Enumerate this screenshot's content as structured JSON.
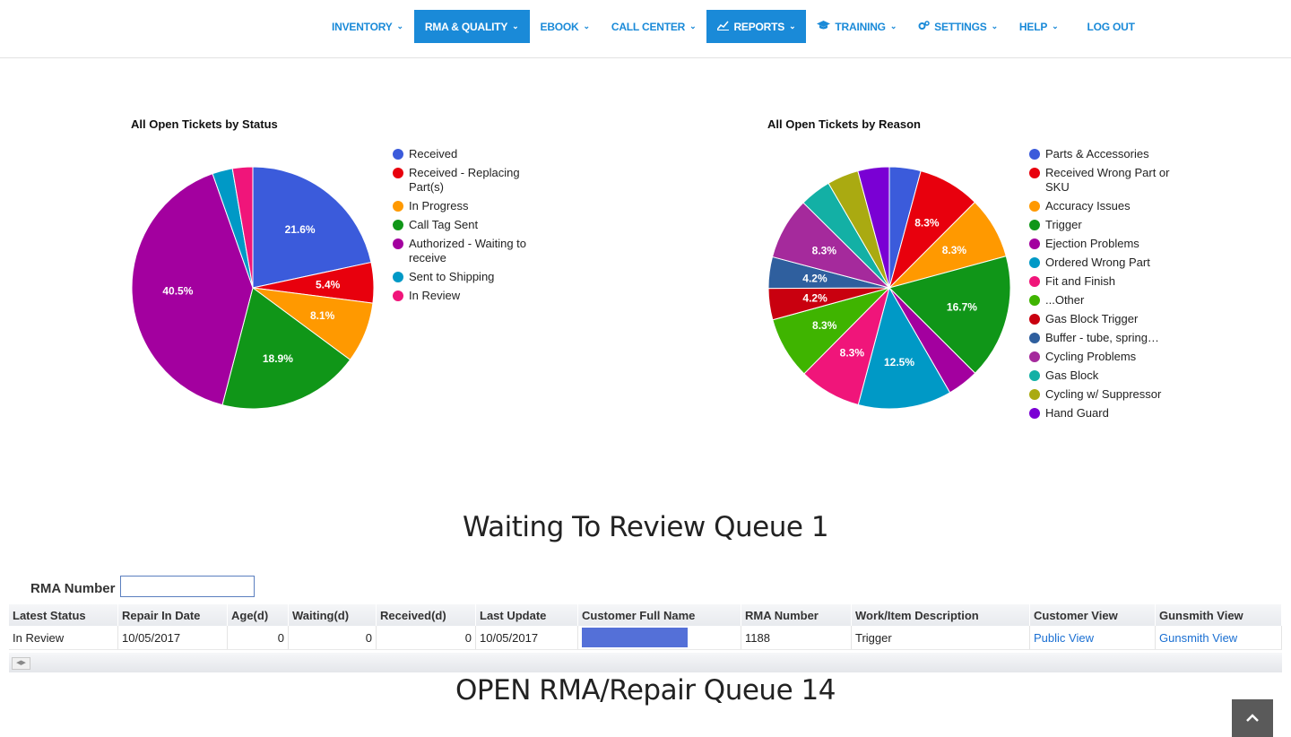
{
  "nav": [
    {
      "label": "INVENTORY",
      "active": false,
      "icon": ""
    },
    {
      "label": "RMA & QUALITY",
      "active": true,
      "icon": ""
    },
    {
      "label": "EBOOK",
      "active": false,
      "icon": ""
    },
    {
      "label": "CALL CENTER",
      "active": false,
      "icon": ""
    },
    {
      "label": "REPORTS",
      "active": true,
      "icon": "line-chart-icon"
    },
    {
      "label": "TRAINING",
      "active": false,
      "icon": "graduation-cap-icon"
    },
    {
      "label": "SETTINGS",
      "active": false,
      "icon": "cogs-icon"
    },
    {
      "label": "HELP",
      "active": false,
      "icon": ""
    },
    {
      "label": "LOG OUT",
      "active": false,
      "icon": "",
      "no_chevron": true
    }
  ],
  "chart_data": [
    {
      "type": "pie",
      "title": "All Open Tickets by Status",
      "legend_position": "right",
      "slices": [
        {
          "label": "Received",
          "value": 21.6,
          "color": "#3b5bdb",
          "display": "21.6%"
        },
        {
          "label": "Received - Replacing Part(s)",
          "value": 5.4,
          "color": "#e8000d",
          "display": "5.4%"
        },
        {
          "label": "In Progress",
          "value": 8.1,
          "color": "#ff9900",
          "display": "8.1%"
        },
        {
          "label": "Call Tag Sent",
          "value": 18.9,
          "color": "#109618",
          "display": "18.9%"
        },
        {
          "label": "Authorized - Waiting to receive",
          "value": 40.5,
          "color": "#a3009f",
          "display": "40.5%"
        },
        {
          "label": "Sent to Shipping",
          "value": 2.7,
          "color": "#0099c6",
          "display": ""
        },
        {
          "label": "In Review",
          "value": 2.7,
          "color": "#f0157a",
          "display": ""
        }
      ]
    },
    {
      "type": "pie",
      "title": "All Open Tickets by Reason",
      "legend_position": "right",
      "slices": [
        {
          "label": "Parts & Accessories",
          "value": 4.2,
          "color": "#3b5bdb",
          "display": ""
        },
        {
          "label": "Received Wrong Part or SKU",
          "value": 8.3,
          "color": "#e8000d",
          "display": "8.3%"
        },
        {
          "label": "Accuracy Issues",
          "value": 8.3,
          "color": "#ff9900",
          "display": "8.3%"
        },
        {
          "label": "Trigger",
          "value": 16.7,
          "color": "#109618",
          "display": "16.7%"
        },
        {
          "label": "Ejection Problems",
          "value": 4.2,
          "color": "#a3009f",
          "display": ""
        },
        {
          "label": "Ordered Wrong Part",
          "value": 12.5,
          "color": "#0099c6",
          "display": "12.5%"
        },
        {
          "label": "Fit and Finish",
          "value": 8.3,
          "color": "#f0157a",
          "display": "8.3%"
        },
        {
          "label": "...Other",
          "value": 8.3,
          "color": "#3fb400",
          "display": "8.3%"
        },
        {
          "label": "Gas Block Trigger",
          "value": 4.2,
          "color": "#c9000f",
          "display": "4.2%"
        },
        {
          "label": "Buffer - tube, spring…",
          "value": 4.2,
          "color": "#2f5f9e",
          "display": "4.2%"
        },
        {
          "label": "Cycling Problems",
          "value": 8.3,
          "color": "#a52a9c",
          "display": "8.3%"
        },
        {
          "label": "Gas Block",
          "value": 4.2,
          "color": "#13b0a5",
          "display": ""
        },
        {
          "label": "Cycling w/ Suppressor",
          "value": 4.2,
          "color": "#aaaa11",
          "display": ""
        },
        {
          "label": "Hand Guard",
          "value": 4.2,
          "color": "#7a00d4",
          "display": ""
        }
      ]
    }
  ],
  "queue1": {
    "title": "Waiting To Review Queue 1",
    "filter_label": "RMA Number",
    "filter_value": "",
    "columns": [
      "Latest Status",
      "Repair In Date",
      "Age(d)",
      "Waiting(d)",
      "Received(d)",
      "Last Update",
      "Customer Full Name",
      "RMA Number",
      "Work/Item Description",
      "Customer View",
      "Gunsmith View"
    ],
    "rows": [
      {
        "status": "In Review",
        "repair_in": "10/05/2017",
        "age": "0",
        "waiting": "0",
        "received": "0",
        "last_update": "10/05/2017",
        "customer": "",
        "rma": "1188",
        "desc": "Trigger",
        "customer_view": "Public View",
        "gunsmith_view": "Gunsmith View"
      }
    ]
  },
  "queue2": {
    "title": "OPEN RMA/Repair Queue 14"
  },
  "scroll_top_icon": "chevron-up-icon"
}
